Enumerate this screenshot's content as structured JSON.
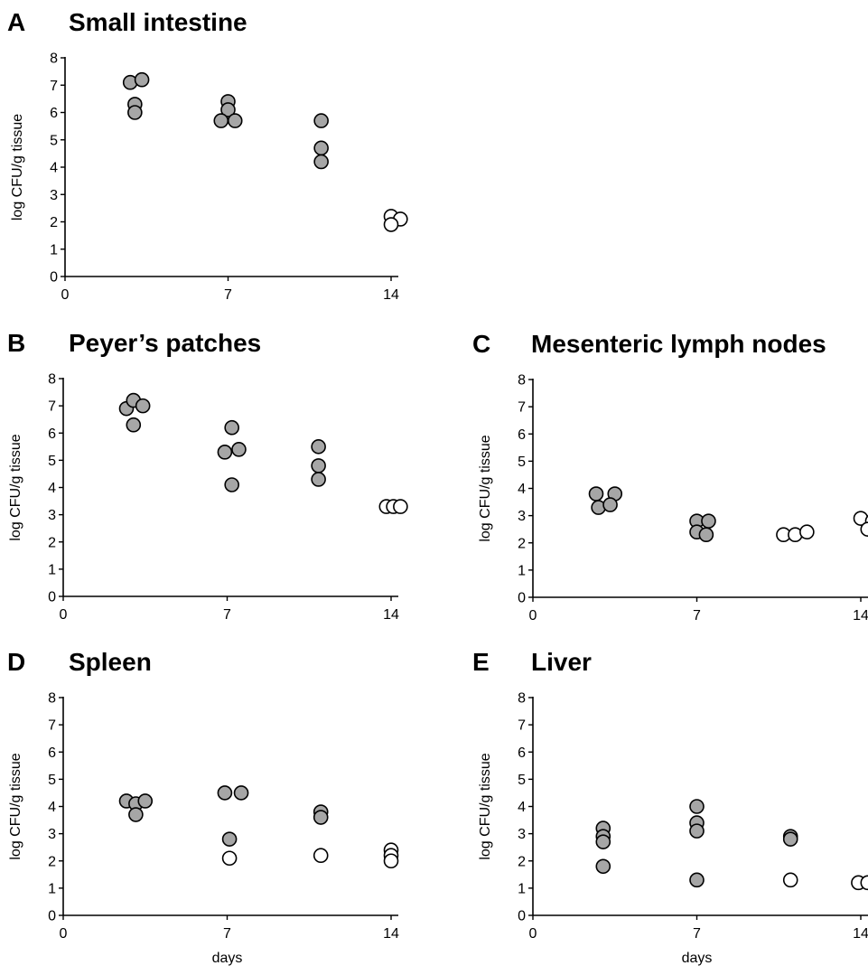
{
  "colors": {
    "infected": "#a6a6a6",
    "cleared": "#ffffff",
    "outline": "#000000"
  },
  "chart_data": [
    {
      "type": "scatter",
      "panel": "A",
      "title": "Small intestine",
      "ylabel": "log CFU/g tissue",
      "xlabel": "",
      "xlim": [
        0,
        15
      ],
      "ylim": [
        0,
        8
      ],
      "xticks": [
        "0",
        "7",
        "14"
      ],
      "yticks": [
        "0",
        "1",
        "2",
        "3",
        "4",
        "5",
        "6",
        "7",
        "8"
      ],
      "grid": false,
      "points": [
        {
          "x": 2.8,
          "y": 7.1,
          "state": "filled"
        },
        {
          "x": 3.3,
          "y": 7.2,
          "state": "filled"
        },
        {
          "x": 3.0,
          "y": 6.3,
          "state": "filled"
        },
        {
          "x": 3.0,
          "y": 6.0,
          "state": "filled"
        },
        {
          "x": 7.0,
          "y": 6.4,
          "state": "filled"
        },
        {
          "x": 7.0,
          "y": 6.1,
          "state": "filled"
        },
        {
          "x": 6.7,
          "y": 5.7,
          "state": "filled"
        },
        {
          "x": 7.3,
          "y": 5.7,
          "state": "filled"
        },
        {
          "x": 11.0,
          "y": 5.7,
          "state": "filled"
        },
        {
          "x": 11.0,
          "y": 4.7,
          "state": "filled"
        },
        {
          "x": 11.0,
          "y": 4.2,
          "state": "filled"
        },
        {
          "x": 14.0,
          "y": 2.2,
          "state": "open"
        },
        {
          "x": 14.4,
          "y": 2.1,
          "state": "open"
        },
        {
          "x": 14.0,
          "y": 1.9,
          "state": "open"
        }
      ]
    },
    {
      "type": "scatter",
      "panel": "B",
      "title": "Peyer’s patches",
      "ylabel": "log CFU/g tissue",
      "xlabel": "",
      "xlim": [
        0,
        15
      ],
      "ylim": [
        0,
        8
      ],
      "xticks": [
        "0",
        "7",
        "14"
      ],
      "yticks": [
        "0",
        "1",
        "2",
        "3",
        "4",
        "5",
        "6",
        "7",
        "8"
      ],
      "grid": false,
      "points": [
        {
          "x": 2.7,
          "y": 6.9,
          "state": "filled"
        },
        {
          "x": 3.0,
          "y": 7.2,
          "state": "filled"
        },
        {
          "x": 3.4,
          "y": 7.0,
          "state": "filled"
        },
        {
          "x": 3.0,
          "y": 6.3,
          "state": "filled"
        },
        {
          "x": 7.2,
          "y": 6.2,
          "state": "filled"
        },
        {
          "x": 6.9,
          "y": 5.3,
          "state": "filled"
        },
        {
          "x": 7.5,
          "y": 5.4,
          "state": "filled"
        },
        {
          "x": 7.2,
          "y": 4.1,
          "state": "filled"
        },
        {
          "x": 10.9,
          "y": 5.5,
          "state": "filled"
        },
        {
          "x": 10.9,
          "y": 4.8,
          "state": "filled"
        },
        {
          "x": 10.9,
          "y": 4.3,
          "state": "filled"
        },
        {
          "x": 13.8,
          "y": 3.3,
          "state": "open"
        },
        {
          "x": 14.1,
          "y": 3.3,
          "state": "open"
        },
        {
          "x": 14.4,
          "y": 3.3,
          "state": "open"
        }
      ]
    },
    {
      "type": "scatter",
      "panel": "C",
      "title": "Mesenteric lymph nodes",
      "ylabel": "log CFU/g tissue",
      "xlabel": "",
      "xlim": [
        0,
        15
      ],
      "ylim": [
        0,
        8
      ],
      "xticks": [
        "0",
        "7",
        "14"
      ],
      "yticks": [
        "0",
        "1",
        "2",
        "3",
        "4",
        "5",
        "6",
        "7",
        "8"
      ],
      "grid": false,
      "points": [
        {
          "x": 2.7,
          "y": 3.8,
          "state": "filled"
        },
        {
          "x": 3.5,
          "y": 3.8,
          "state": "filled"
        },
        {
          "x": 2.8,
          "y": 3.3,
          "state": "filled"
        },
        {
          "x": 3.3,
          "y": 3.4,
          "state": "filled"
        },
        {
          "x": 7.0,
          "y": 2.8,
          "state": "filled"
        },
        {
          "x": 7.5,
          "y": 2.8,
          "state": "filled"
        },
        {
          "x": 7.0,
          "y": 2.4,
          "state": "filled"
        },
        {
          "x": 7.4,
          "y": 2.3,
          "state": "filled"
        },
        {
          "x": 10.7,
          "y": 2.3,
          "state": "open"
        },
        {
          "x": 11.2,
          "y": 2.3,
          "state": "open"
        },
        {
          "x": 11.7,
          "y": 2.4,
          "state": "open"
        },
        {
          "x": 14.0,
          "y": 2.9,
          "state": "open"
        },
        {
          "x": 14.5,
          "y": 2.8,
          "state": "open"
        },
        {
          "x": 14.3,
          "y": 2.5,
          "state": "open"
        }
      ]
    },
    {
      "type": "scatter",
      "panel": "D",
      "title": "Spleen",
      "ylabel": "log CFU/g tissue",
      "xlabel": "days",
      "xlim": [
        0,
        15
      ],
      "ylim": [
        0,
        8
      ],
      "xticks": [
        "0",
        "7",
        "14"
      ],
      "yticks": [
        "0",
        "1",
        "2",
        "3",
        "4",
        "5",
        "6",
        "7",
        "8"
      ],
      "grid": false,
      "points": [
        {
          "x": 2.7,
          "y": 4.2,
          "state": "filled"
        },
        {
          "x": 3.1,
          "y": 4.1,
          "state": "filled"
        },
        {
          "x": 3.5,
          "y": 4.2,
          "state": "filled"
        },
        {
          "x": 3.1,
          "y": 3.7,
          "state": "filled"
        },
        {
          "x": 6.9,
          "y": 4.5,
          "state": "filled"
        },
        {
          "x": 7.6,
          "y": 4.5,
          "state": "filled"
        },
        {
          "x": 7.1,
          "y": 2.8,
          "state": "filled"
        },
        {
          "x": 7.1,
          "y": 2.1,
          "state": "open"
        },
        {
          "x": 11.0,
          "y": 3.8,
          "state": "filled"
        },
        {
          "x": 11.0,
          "y": 3.6,
          "state": "filled"
        },
        {
          "x": 11.0,
          "y": 2.2,
          "state": "open"
        },
        {
          "x": 14.0,
          "y": 2.4,
          "state": "open"
        },
        {
          "x": 14.0,
          "y": 2.2,
          "state": "open"
        },
        {
          "x": 14.0,
          "y": 2.0,
          "state": "open"
        }
      ]
    },
    {
      "type": "scatter",
      "panel": "E",
      "title": "Liver",
      "ylabel": "log CFU/g tissue",
      "xlabel": "days",
      "xlim": [
        0,
        15
      ],
      "ylim": [
        0,
        8
      ],
      "xticks": [
        "0",
        "7",
        "14"
      ],
      "yticks": [
        "0",
        "1",
        "2",
        "3",
        "4",
        "5",
        "6",
        "7",
        "8"
      ],
      "grid": false,
      "points": [
        {
          "x": 3.0,
          "y": 3.2,
          "state": "filled"
        },
        {
          "x": 3.0,
          "y": 2.9,
          "state": "filled"
        },
        {
          "x": 3.0,
          "y": 2.7,
          "state": "filled"
        },
        {
          "x": 3.0,
          "y": 1.8,
          "state": "filled"
        },
        {
          "x": 7.0,
          "y": 4.0,
          "state": "filled"
        },
        {
          "x": 7.0,
          "y": 3.4,
          "state": "filled"
        },
        {
          "x": 7.0,
          "y": 3.1,
          "state": "filled"
        },
        {
          "x": 7.0,
          "y": 1.3,
          "state": "filled"
        },
        {
          "x": 11.0,
          "y": 2.9,
          "state": "filled"
        },
        {
          "x": 11.0,
          "y": 2.8,
          "state": "filled"
        },
        {
          "x": 11.0,
          "y": 1.3,
          "state": "open"
        },
        {
          "x": 13.9,
          "y": 1.2,
          "state": "open"
        },
        {
          "x": 14.3,
          "y": 1.2,
          "state": "open"
        },
        {
          "x": 14.7,
          "y": 1.2,
          "state": "open"
        }
      ]
    }
  ]
}
